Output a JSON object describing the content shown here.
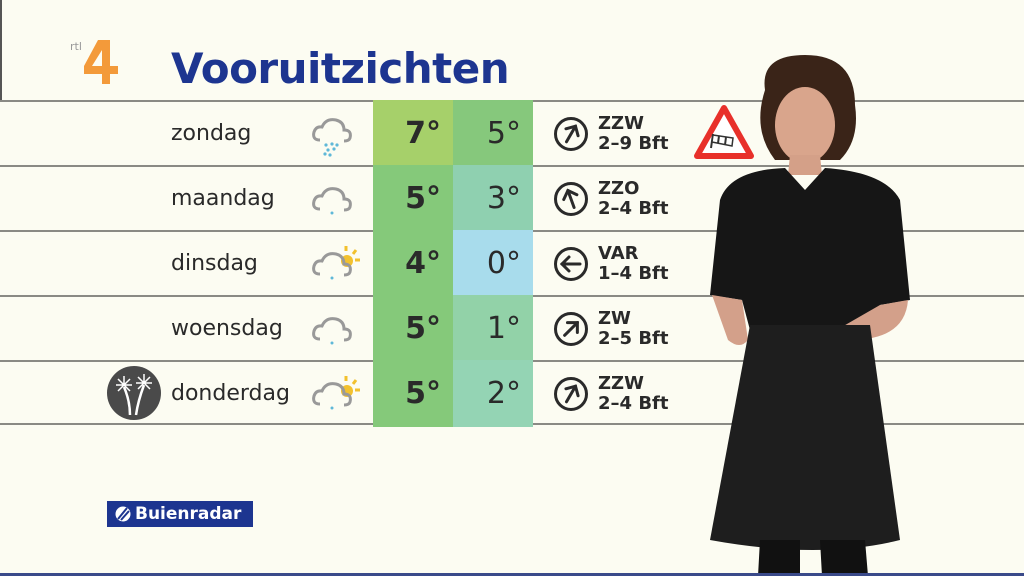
{
  "channel_logo": "rtl 4",
  "title": "Vooruitzichten",
  "colors": {
    "title": "#1d3590",
    "background": "#fcfcf2",
    "sponsor": "#1d3590"
  },
  "forecast": [
    {
      "day": "zondag",
      "icon": "rain-cloud-icon",
      "high": "7°",
      "low": "5°",
      "high_color": "#a6d06a",
      "low_color": "#86c87c",
      "wind_dir": "ZZW",
      "wind_arrow": "north-northeast",
      "wind_rotation_deg": 30,
      "wind_force": "2–9 Bft",
      "warning": "wind-warning-icon"
    },
    {
      "day": "maandag",
      "icon": "cloud-drizzle-icon",
      "high": "5°",
      "low": "3°",
      "high_color": "#85c97a",
      "low_color": "#8fd0b0",
      "wind_dir": "ZZO",
      "wind_arrow": "north-northwest",
      "wind_rotation_deg": -20,
      "wind_force": "2–4 Bft"
    },
    {
      "day": "dinsdag",
      "icon": "partly-sunny-cloud-icon",
      "high": "4°",
      "low": "0°",
      "high_color": "#85c97a",
      "low_color": "#a8dcec",
      "wind_dir": "VAR",
      "wind_arrow": "west",
      "wind_rotation_deg": -90,
      "wind_force": "1–4 Bft"
    },
    {
      "day": "woensdag",
      "icon": "cloud-drizzle-icon",
      "high": "5°",
      "low": "1°",
      "high_color": "#85c97a",
      "low_color": "#92d2a8",
      "wind_dir": "ZW",
      "wind_arrow": "northeast",
      "wind_rotation_deg": 45,
      "wind_force": "2–5 Bft"
    },
    {
      "day": "donderdag",
      "icon": "partly-sunny-cloud-icon",
      "high": "5°",
      "low": "2°",
      "high_color": "#85c97a",
      "low_color": "#94d4b4",
      "wind_dir": "ZZW",
      "wind_arrow": "north-northeast",
      "wind_rotation_deg": 30,
      "wind_force": "2–4 Bft",
      "badge": "fireworks-icon"
    }
  ],
  "sponsor": "Buienradar"
}
